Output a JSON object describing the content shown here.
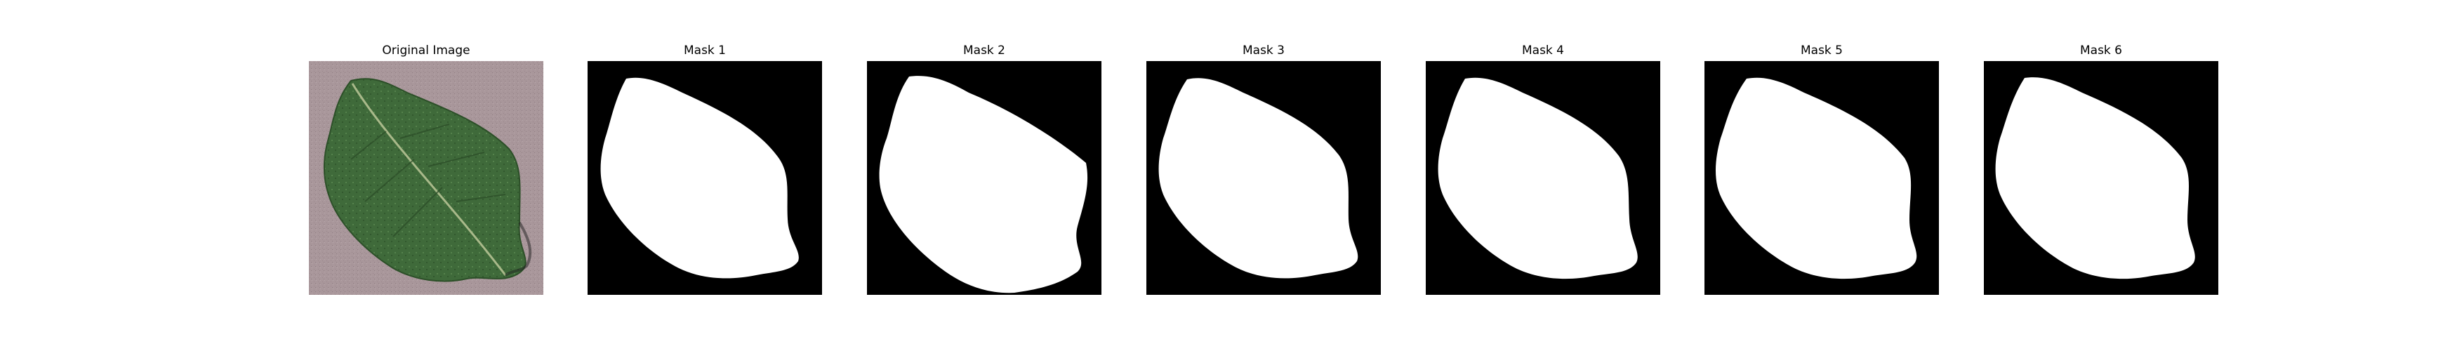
{
  "figure": {
    "panels": [
      {
        "title": "Original Image",
        "kind": "photo"
      },
      {
        "title": "Mask 1",
        "kind": "mask"
      },
      {
        "title": "Mask 2",
        "kind": "mask"
      },
      {
        "title": "Mask 3",
        "kind": "mask"
      },
      {
        "title": "Mask 4",
        "kind": "mask"
      },
      {
        "title": "Mask 5",
        "kind": "mask"
      },
      {
        "title": "Mask 6",
        "kind": "mask"
      }
    ],
    "colors": {
      "mask_background": "#000000",
      "mask_foreground": "#ffffff",
      "photo_background": "#a9979b",
      "leaf_green": "#3f6a3a"
    }
  }
}
